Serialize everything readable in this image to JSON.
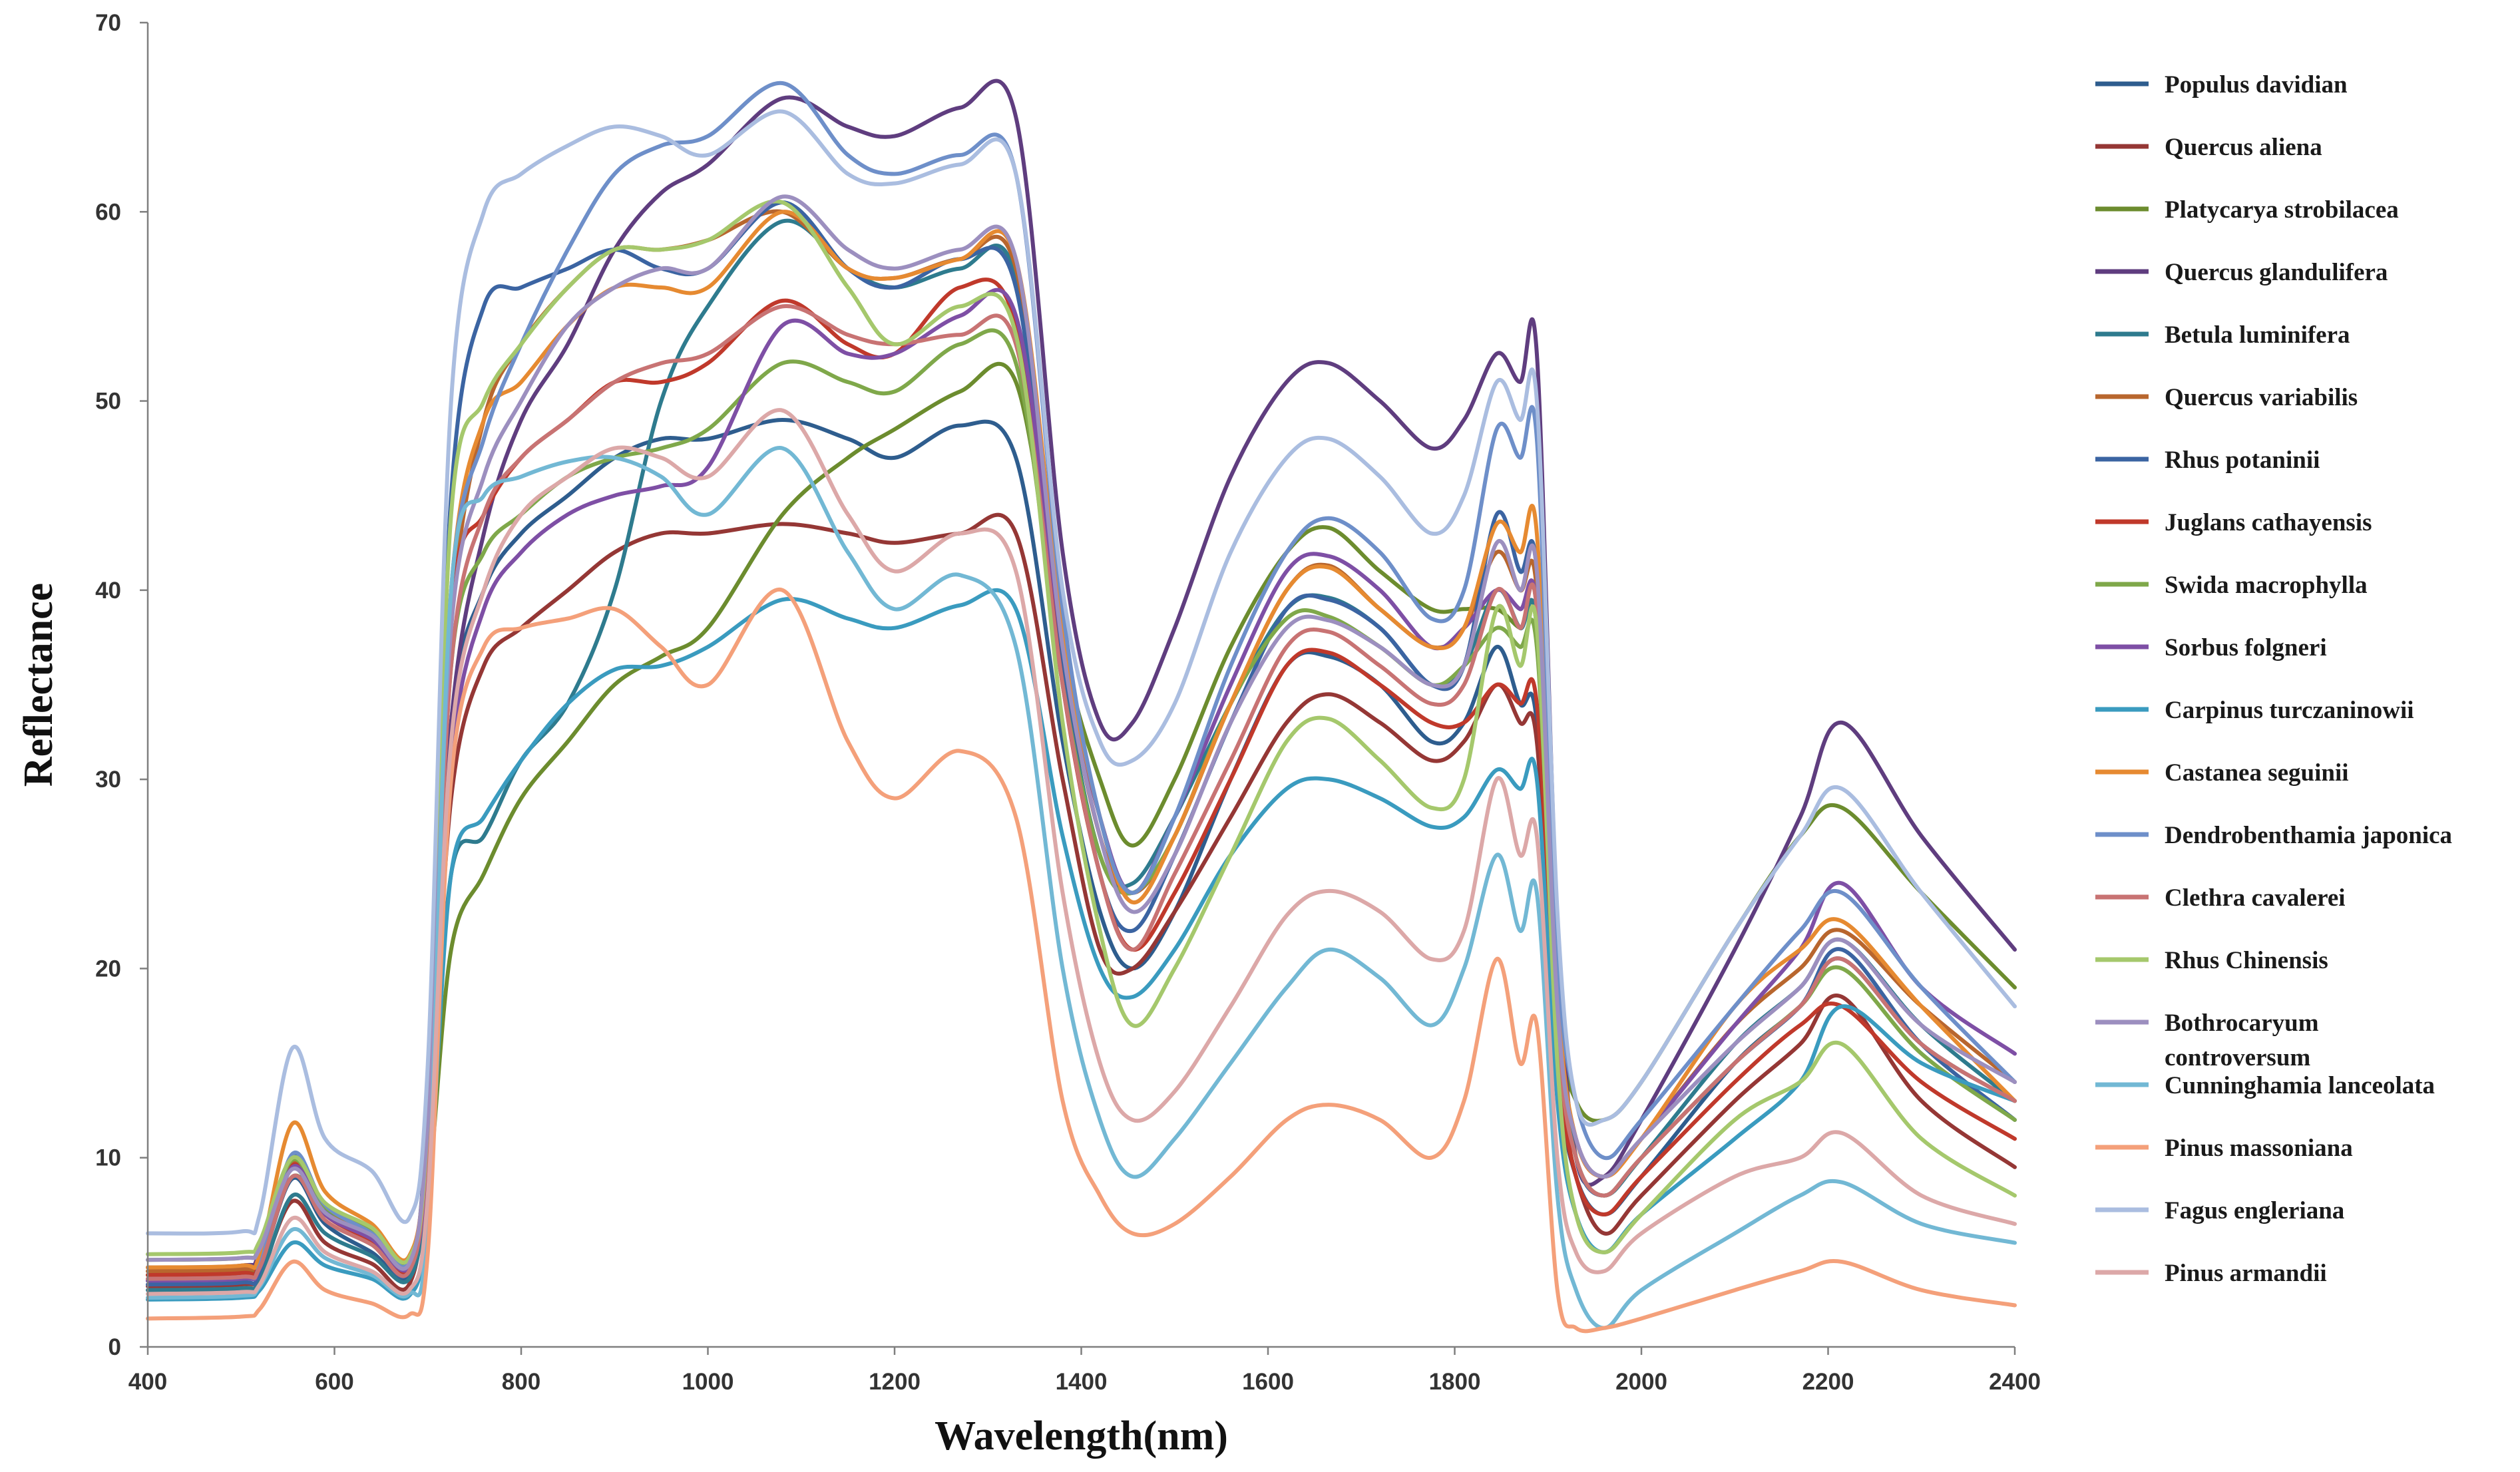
{
  "chart_data": {
    "type": "line",
    "title": "",
    "xlabel": "Wavelength(nm)",
    "ylabel": "Reflectance",
    "xlim": [
      400,
      2400
    ],
    "ylim": [
      0,
      70
    ],
    "x_ticks": [
      400,
      600,
      800,
      1000,
      1200,
      1400,
      1600,
      1800,
      2000,
      2200,
      2400
    ],
    "y_ticks": [
      0,
      10,
      20,
      30,
      40,
      50,
      60,
      70
    ],
    "grid": false,
    "legend_position": "right",
    "x": [
      400,
      500,
      520,
      555,
      590,
      640,
      680,
      700,
      725,
      760,
      800,
      850,
      900,
      950,
      1000,
      1080,
      1150,
      1200,
      1270,
      1330,
      1380,
      1420,
      1455,
      1500,
      1560,
      1620,
      1665,
      1720,
      1775,
      1810,
      1845,
      1870,
      1888,
      1910,
      1930,
      1960,
      2000,
      2100,
      2170,
      2215,
      2300,
      2400
    ],
    "series": [
      {
        "name": "Populus davidian",
        "color": "#2e5d8e",
        "values": [
          3.5,
          3.6,
          4.2,
          8.9,
          6.5,
          5.0,
          3.8,
          10,
          33,
          40,
          43,
          45,
          47,
          48,
          48,
          49,
          48,
          47,
          48.7,
          47,
          32,
          23,
          20,
          23,
          30,
          36,
          36.5,
          35,
          32,
          33,
          37,
          34,
          33,
          15,
          9,
          7,
          9,
          15,
          18,
          20.5,
          16,
          13
        ]
      },
      {
        "name": "Quercus aliena",
        "color": "#953735",
        "values": [
          3.2,
          3.3,
          3.8,
          7.7,
          5.5,
          4.4,
          3.3,
          10,
          29,
          36,
          38,
          40,
          42,
          43,
          43,
          43.5,
          43,
          42.5,
          43,
          43,
          30,
          21,
          20,
          23,
          28,
          33,
          34.5,
          33,
          31,
          32,
          35,
          33,
          32,
          15,
          9,
          6,
          8,
          13,
          16,
          18.5,
          13,
          9.5
        ]
      },
      {
        "name": "Platycarya strobilacea",
        "color": "#6c8c2e",
        "values": [
          3.8,
          3.9,
          4.5,
          9.0,
          7.0,
          5.7,
          4.2,
          8,
          21,
          25,
          29,
          32,
          35,
          36.5,
          38,
          44,
          47,
          48.5,
          50.5,
          51,
          37,
          30,
          26.5,
          30,
          37,
          42,
          43.3,
          41,
          39,
          39,
          39,
          38,
          38,
          18,
          13,
          12,
          14,
          22,
          27,
          28.5,
          24,
          19
        ]
      },
      {
        "name": "Quercus glandulifera",
        "color": "#5f3d7f",
        "values": [
          4.2,
          4.3,
          5.0,
          10,
          7.4,
          6.1,
          4.6,
          11,
          33,
          43,
          49,
          53,
          58,
          61,
          62.5,
          66,
          64.5,
          64,
          65.5,
          65,
          42,
          33,
          33,
          38,
          46,
          51,
          52,
          50,
          47.5,
          49,
          52.5,
          51,
          52.5,
          22,
          10,
          9,
          12,
          21,
          28,
          33,
          27,
          21
        ]
      },
      {
        "name": "Betula luminifera",
        "color": "#2e7b8e",
        "values": [
          3.0,
          3.1,
          3.6,
          8.0,
          6.0,
          4.8,
          3.6,
          9,
          25,
          27,
          31,
          34,
          40,
          50,
          55,
          59.5,
          57,
          56,
          57,
          56.5,
          36,
          26,
          24.5,
          28,
          34,
          39,
          39.6,
          38,
          35,
          36,
          40,
          38,
          38,
          17,
          10,
          8,
          10,
          16,
          19,
          21.5,
          17,
          13
        ]
      },
      {
        "name": "Quercus variabilis",
        "color": "#b8662e",
        "values": [
          4.0,
          4.1,
          4.7,
          9.8,
          7.2,
          5.9,
          4.3,
          11,
          38,
          49,
          53,
          56,
          58,
          58,
          58.5,
          60,
          57,
          56.5,
          57.5,
          57,
          37,
          27,
          24,
          27,
          34,
          40,
          41.3,
          39,
          37,
          38,
          42,
          40,
          40,
          18,
          11,
          9,
          11,
          17,
          20,
          22,
          18,
          14
        ]
      },
      {
        "name": "Rhus potaninii",
        "color": "#3b64a2",
        "values": [
          3.3,
          3.4,
          4.0,
          10,
          7.2,
          5.5,
          4.1,
          13,
          45,
          55,
          56,
          57,
          58,
          57,
          57,
          60.5,
          57,
          56,
          57.5,
          56,
          36,
          25,
          22,
          26,
          33,
          39,
          39.5,
          38,
          35,
          36,
          44,
          41,
          41,
          18,
          10,
          8,
          10,
          15,
          18,
          21,
          16,
          12
        ]
      },
      {
        "name": "Juglans cathayensis",
        "color": "#c0392b",
        "values": [
          3.8,
          3.9,
          4.4,
          9.6,
          7.0,
          5.6,
          4.2,
          12,
          39,
          44,
          47,
          49,
          51,
          51,
          52,
          55.3,
          53,
          52.5,
          56,
          54,
          35,
          25,
          21,
          24,
          30,
          36,
          36.7,
          35,
          33,
          33,
          35,
          34,
          34,
          16,
          9,
          7,
          9,
          14,
          17,
          18,
          14,
          11
        ]
      },
      {
        "name": "Swida macrophylla",
        "color": "#7fa84a",
        "values": [
          4.6,
          4.7,
          5.3,
          9.9,
          7.4,
          6.1,
          4.6,
          11,
          36,
          42,
          44,
          46,
          47,
          47.5,
          48.5,
          52,
          51,
          50.5,
          53,
          52,
          35,
          26,
          24,
          27,
          34,
          38.5,
          38.6,
          37,
          35,
          36,
          38,
          37,
          37,
          17,
          10,
          8,
          10,
          15,
          18,
          20,
          15.5,
          12
        ]
      },
      {
        "name": "Sorbus folgneri",
        "color": "#7e4fa5",
        "values": [
          3.5,
          3.6,
          4.2,
          9.5,
          7.0,
          5.7,
          4.2,
          10,
          31,
          39,
          42,
          44,
          45,
          45.5,
          46.5,
          54,
          52.5,
          52.5,
          54.5,
          54.5,
          37,
          28,
          24,
          28,
          35,
          41,
          41.8,
          40,
          37,
          38,
          40,
          39,
          39,
          18,
          11,
          9,
          11,
          17,
          21,
          24.5,
          19,
          15.5
        ]
      },
      {
        "name": "Carpinus turczaninowii",
        "color": "#3a9bbf",
        "values": [
          2.5,
          2.6,
          3.0,
          5.5,
          4.3,
          3.6,
          2.7,
          7,
          25,
          28,
          31,
          34,
          35.8,
          36,
          37,
          39.5,
          38.5,
          38,
          39.2,
          39,
          27,
          20,
          18.5,
          21,
          26,
          29.5,
          30,
          29,
          27.5,
          28,
          30.5,
          29.5,
          30,
          13,
          7,
          5,
          7,
          11,
          14,
          18,
          15,
          13
        ]
      },
      {
        "name": "Castanea seguinii",
        "color": "#e68a31",
        "values": [
          4.2,
          4.3,
          4.9,
          11.8,
          8.2,
          6.5,
          4.8,
          12,
          40,
          49,
          51,
          54,
          56,
          56,
          56,
          60,
          57,
          56.5,
          57.5,
          57.5,
          38,
          28,
          23.5,
          27,
          34,
          40,
          41.2,
          39,
          37,
          38,
          43.5,
          42,
          43,
          19,
          11,
          9,
          11,
          18,
          21,
          22.5,
          18,
          13
        ]
      },
      {
        "name": "Dendrobenthamia japonica",
        "color": "#6e8fc9",
        "values": [
          3.6,
          3.7,
          4.3,
          10.2,
          7.5,
          6.0,
          4.5,
          12,
          40,
          48,
          53,
          58,
          62,
          63.5,
          64,
          66.8,
          63,
          62,
          63,
          62,
          39,
          28,
          24,
          28,
          36,
          42,
          43.8,
          42,
          38.5,
          40,
          48.5,
          47,
          48,
          21,
          13,
          10,
          12,
          18,
          22,
          24,
          19,
          14
        ]
      },
      {
        "name": "Clethra cavalerei",
        "color": "#c87373",
        "values": [
          3.6,
          3.7,
          4.2,
          9.0,
          6.7,
          5.4,
          4.0,
          11,
          36,
          44,
          47,
          49,
          51,
          52,
          52.5,
          55,
          53.5,
          53,
          53.5,
          53,
          35,
          25,
          21,
          25,
          31,
          37,
          37.8,
          36,
          34,
          35,
          40,
          38,
          39,
          17,
          10,
          8,
          10,
          15,
          18,
          20.5,
          16,
          13
        ]
      },
      {
        "name": "Rhus Chinensis",
        "color": "#a5c86c",
        "values": [
          4.9,
          5.0,
          5.6,
          10,
          7.6,
          6.3,
          4.7,
          12,
          44,
          50,
          53,
          56,
          58,
          58,
          58.5,
          60.5,
          56,
          53,
          55,
          53.5,
          33,
          22,
          17,
          20,
          26,
          32,
          33.2,
          31,
          28.5,
          30,
          39,
          36,
          38,
          15,
          7,
          5,
          7,
          12,
          14,
          16,
          11,
          8
        ]
      },
      {
        "name": "Bothrocaryum controversum",
        "color": "#9c8fbf",
        "values": [
          4.6,
          4.7,
          5.2,
          9.4,
          7.1,
          5.9,
          4.4,
          12,
          38,
          46,
          50,
          54,
          56,
          57,
          57,
          60.8,
          58,
          57,
          58,
          57.5,
          37,
          27,
          23,
          26,
          33,
          38,
          38.4,
          37,
          35,
          36,
          42.5,
          40,
          41,
          18,
          11,
          9,
          11,
          16,
          19,
          21.5,
          17,
          14
        ]
      },
      {
        "name": "Cunninghamia lanceolata",
        "color": "#72b8d4",
        "values": [
          2.6,
          2.7,
          3.2,
          6.2,
          4.7,
          3.8,
          2.8,
          7,
          40,
          45,
          46,
          46.8,
          47,
          46,
          44,
          47.5,
          42,
          39,
          40.8,
          37,
          20,
          12,
          9,
          11,
          15,
          19,
          21,
          19.5,
          17,
          20,
          26,
          22,
          24,
          8,
          3,
          1,
          3,
          6,
          8,
          8.7,
          6.5,
          5.5
        ]
      },
      {
        "name": "Pinus massoniana",
        "color": "#f4a07a",
        "values": [
          1.5,
          1.6,
          2.0,
          4.5,
          3.0,
          2.3,
          1.7,
          5,
          30,
          37,
          38,
          38.5,
          39,
          37,
          35,
          40,
          32,
          29,
          31.5,
          28,
          13,
          8,
          6,
          6.5,
          9,
          12,
          12.8,
          12,
          10,
          13,
          20.5,
          15,
          17,
          3,
          1,
          1,
          1.5,
          3,
          4,
          4.5,
          3,
          2.2
        ]
      },
      {
        "name": "Fagus engleriana",
        "color": "#aabde0",
        "values": [
          6.0,
          6.1,
          7.0,
          15.8,
          11,
          9.3,
          6.8,
          15,
          50,
          60,
          62,
          63.5,
          64.5,
          64,
          63,
          65.3,
          62,
          61.5,
          62.5,
          62,
          40,
          32,
          31,
          34,
          42,
          47,
          48,
          46,
          43,
          45,
          51,
          49,
          50,
          23,
          13,
          12,
          14,
          22,
          27,
          29.5,
          24,
          18
        ]
      },
      {
        "name": "Pinus armandii",
        "color": "#dca8a8",
        "values": [
          2.8,
          2.9,
          3.3,
          6.8,
          5.0,
          4.0,
          3.0,
          8,
          32,
          40,
          44,
          46,
          47.5,
          47,
          46,
          49.5,
          44,
          41,
          43,
          41,
          24,
          15,
          12,
          13.5,
          18,
          22.8,
          24.1,
          23,
          20.5,
          22,
          30,
          26,
          27,
          10,
          5,
          4,
          6,
          9,
          10,
          11.3,
          8,
          6.5
        ]
      }
    ]
  }
}
